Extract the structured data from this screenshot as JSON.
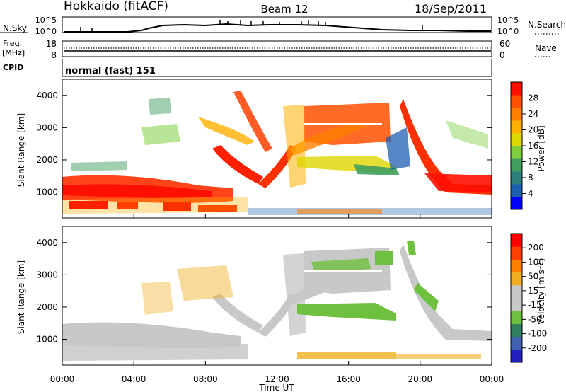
{
  "header": {
    "station": "Hokkaido (fitACF)",
    "beam": "Beam 12",
    "date": "18/Sep/2011"
  },
  "strips": {
    "sky": {
      "label": "N.Sky",
      "ticks": [
        "10^5",
        "10^0"
      ],
      "right_label": "N.Search",
      "right_ticks": [
        "10^5",
        "10^0"
      ]
    },
    "freq": {
      "label_line1": "Freq.",
      "label_line2": "[MHz]",
      "ticks": [
        "18",
        "8"
      ],
      "right_label": "Nave",
      "right_ticks": [
        "60",
        "0"
      ]
    },
    "cpid": {
      "label": "CPID",
      "value": "normal (fast) 151"
    }
  },
  "chart_data": [
    {
      "type": "heatmap",
      "name": "power",
      "ylabel": "Slant Range [km]",
      "ylim": [
        200,
        4500
      ],
      "yticks": [
        1000,
        2000,
        3000,
        4000
      ],
      "colorbar": {
        "label": "Power [dB]",
        "ticks": [
          "28",
          "24",
          "20",
          "16",
          "12",
          "8",
          "4"
        ],
        "colors": [
          "#0000ff",
          "#1f5fb0",
          "#2f7f7f",
          "#3f9f5f",
          "#7fcf3f",
          "#dfd700",
          "#ffb000",
          "#ff8000",
          "#ff5000",
          "#ff1000"
        ]
      }
    },
    {
      "type": "heatmap",
      "name": "velocity",
      "ylabel": "Slant Range [km]",
      "ylim": [
        200,
        4500
      ],
      "yticks": [
        1000,
        2000,
        3000,
        4000
      ],
      "colorbar": {
        "label": "Velocity [m s⁻¹]",
        "ticks": [
          "200",
          "100",
          "50",
          "15",
          "-15",
          "-50",
          "-100",
          "-200"
        ],
        "colors": [
          "#2020c0",
          "#4060b0",
          "#308060",
          "#70c040",
          "#c8c8c8",
          "#c8c8c8",
          "#f0b020",
          "#ff8000",
          "#ff4000",
          "#ff0000"
        ]
      },
      "xlabel": "Time UT",
      "xticks": [
        "00:00",
        "04:00",
        "08:00",
        "12:00",
        "16:00",
        "20:00",
        "00:00"
      ]
    }
  ],
  "colors": {
    "axis": "#000000",
    "ground": "#c8c8c8"
  }
}
